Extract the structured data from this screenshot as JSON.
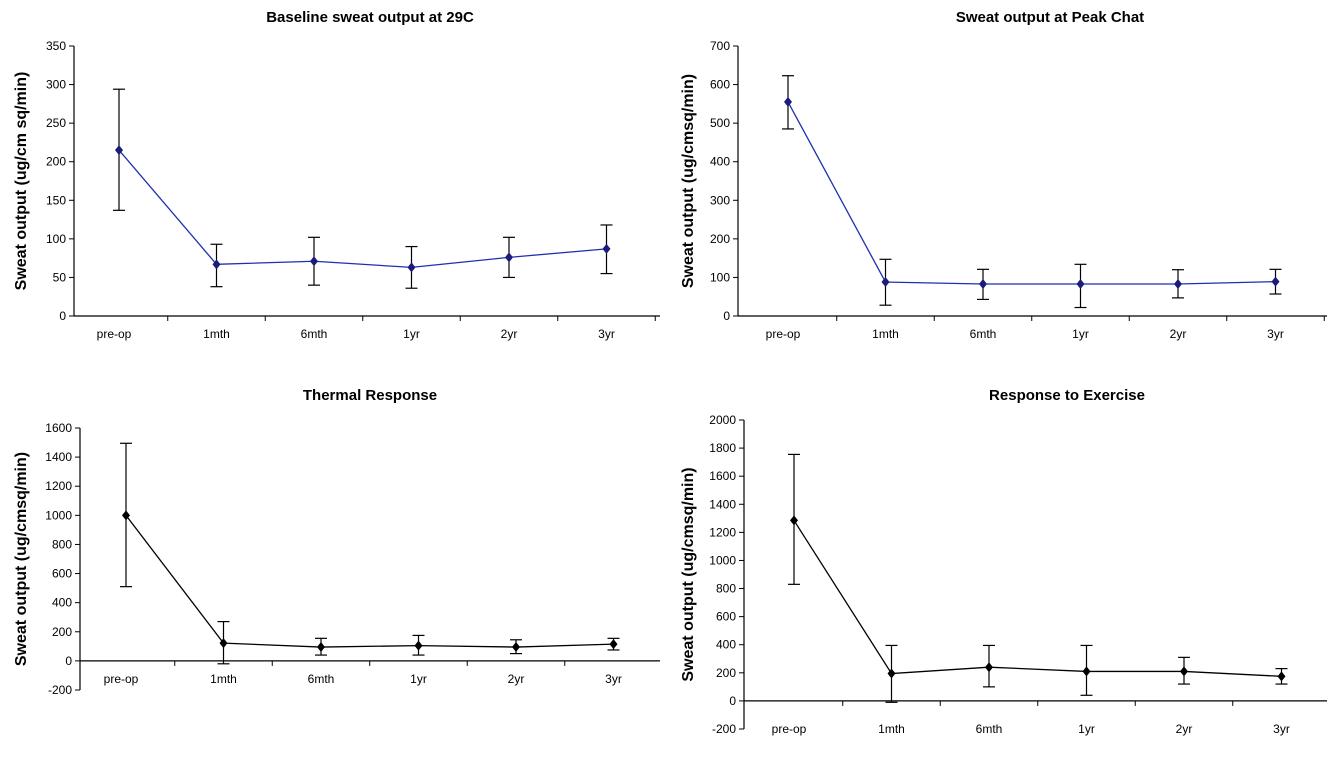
{
  "chart_data": [
    {
      "type": "line",
      "title": "Baseline sweat output at 29C",
      "ylabel": "Sweat output (ug/cm sq/min)",
      "xlabel": "",
      "categories": [
        "pre-op",
        "1mth",
        "6mth",
        "1yr",
        "2yr",
        "3yr"
      ],
      "ylim": [
        0,
        350
      ],
      "yticks": [
        0,
        50,
        100,
        150,
        200,
        250,
        300,
        350
      ],
      "color": "#1f2fb0",
      "marker_color": "#1c1c7a",
      "series": [
        {
          "values": [
            215,
            67,
            71,
            63,
            76,
            87
          ],
          "error_low": [
            137,
            38,
            40,
            36,
            50,
            55
          ],
          "error_high": [
            294,
            93,
            102,
            90,
            102,
            118
          ]
        }
      ]
    },
    {
      "type": "line",
      "title": "Sweat output at Peak Chat",
      "ylabel": "Sweat output (ug/cmsq/min)",
      "xlabel": "",
      "categories": [
        "pre-op",
        "1mth",
        "6mth",
        "1yr",
        "2yr",
        "3yr"
      ],
      "ylim": [
        0,
        700
      ],
      "yticks": [
        0,
        100,
        200,
        300,
        400,
        500,
        600,
        700
      ],
      "color": "#1f2fb0",
      "marker_color": "#1c1c7a",
      "series": [
        {
          "values": [
            555,
            88,
            83,
            83,
            83,
            89
          ],
          "error_low": [
            485,
            28,
            43,
            22,
            47,
            57
          ],
          "error_high": [
            623,
            147,
            121,
            134,
            120,
            121
          ]
        }
      ]
    },
    {
      "type": "line",
      "title": "Thermal Response",
      "ylabel": "Sweat output (ug/cmsq/min)",
      "xlabel": "",
      "categories": [
        "pre-op",
        "1mth",
        "6mth",
        "1yr",
        "2yr",
        "3yr"
      ],
      "ylim": [
        -200,
        1600
      ],
      "yticks": [
        -200,
        0,
        200,
        400,
        600,
        800,
        1000,
        1200,
        1400,
        1600
      ],
      "color": "#000000",
      "marker_color": "#000000",
      "series": [
        {
          "values": [
            1000,
            122,
            95,
            105,
            95,
            115
          ],
          "error_low": [
            510,
            -20,
            40,
            40,
            50,
            75
          ],
          "error_high": [
            1495,
            270,
            155,
            175,
            145,
            155
          ]
        }
      ]
    },
    {
      "type": "line",
      "title": "Response to Exercise",
      "ylabel": "Sweat output (ug/cmsq/min)",
      "xlabel": "",
      "categories": [
        "pre-op",
        "1mth",
        "6mth",
        "1yr",
        "2yr",
        "3yr"
      ],
      "ylim": [
        -200,
        2000
      ],
      "yticks": [
        -200,
        0,
        200,
        400,
        600,
        800,
        1000,
        1200,
        1400,
        1600,
        1800,
        2000
      ],
      "color": "#000000",
      "marker_color": "#000000",
      "series": [
        {
          "values": [
            1285,
            195,
            240,
            210,
            210,
            175
          ],
          "error_low": [
            830,
            -10,
            100,
            40,
            120,
            120
          ],
          "error_high": [
            1755,
            395,
            395,
            395,
            310,
            230
          ]
        }
      ]
    }
  ]
}
